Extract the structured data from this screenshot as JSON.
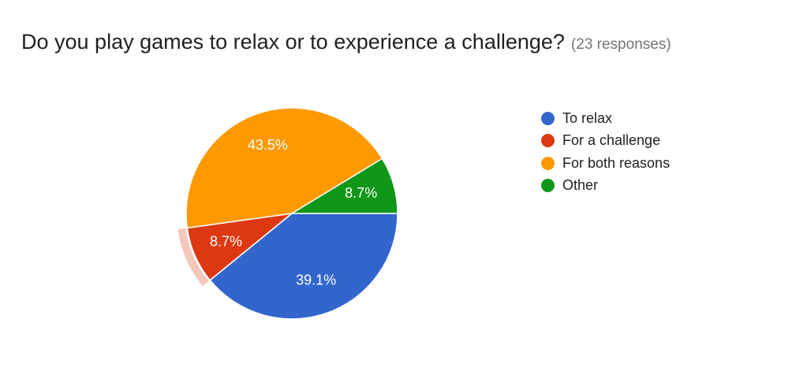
{
  "header": {
    "title": "Do you play games to relax or to experience a challenge?",
    "responses": "(23 responses)"
  },
  "chart_data": {
    "type": "pie",
    "title": "Do you play games to relax or to experience a challenge?",
    "categories": [
      "To relax",
      "For a challenge",
      "For both reasons",
      "Other"
    ],
    "values": [
      39.1,
      8.7,
      43.5,
      8.7
    ],
    "labels": [
      "39.1%",
      "8.7%",
      "43.5%",
      "8.7%"
    ],
    "colors": [
      "#3366cc",
      "#dc3912",
      "#ff9900",
      "#109618"
    ],
    "highlighted": "For a challenge",
    "highlight_color": "#f4c7bd",
    "legend_position": "right"
  }
}
